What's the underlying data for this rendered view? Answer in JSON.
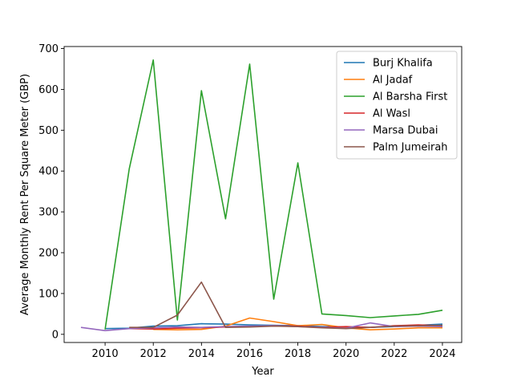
{
  "chart_data": {
    "type": "line",
    "title": "",
    "xlabel": "Year",
    "ylabel": "Average Monthly Rent Per Square Meter (GBP)",
    "xlim": [
      2008.3,
      2024.8
    ],
    "ylim": [
      -20,
      705
    ],
    "xticks": [
      2010,
      2012,
      2014,
      2016,
      2018,
      2020,
      2022,
      2024
    ],
    "yticks": [
      0,
      100,
      200,
      300,
      400,
      500,
      600,
      700
    ],
    "grid": false,
    "legend": "top-right",
    "series": [
      {
        "name": "Burj Khalifa",
        "color": "#1f77b4",
        "x": [
          2010,
          2011,
          2012,
          2013,
          2014,
          2015,
          2016,
          2017,
          2018,
          2019,
          2020,
          2021,
          2022,
          2023,
          2024
        ],
        "y": [
          14,
          15,
          20,
          21,
          26,
          25,
          23,
          22,
          21,
          19,
          18,
          17,
          19,
          22,
          25
        ]
      },
      {
        "name": "Al Jadaf",
        "color": "#ff7f0e",
        "x": [
          2012,
          2013,
          2014,
          2015,
          2016,
          2017,
          2018,
          2019,
          2020,
          2021,
          2022,
          2023,
          2024
        ],
        "y": [
          12,
          11,
          12,
          20,
          40,
          31,
          21,
          24,
          16,
          11,
          13,
          16,
          16
        ]
      },
      {
        "name": "Al Barsha First",
        "color": "#2ca02c",
        "x": [
          2010,
          2011,
          2012,
          2013,
          2014,
          2015,
          2016,
          2017,
          2018,
          2019,
          2020,
          2021,
          2022,
          2023,
          2024
        ],
        "y": [
          12,
          405,
          672,
          35,
          597,
          283,
          662,
          86,
          420,
          50,
          46,
          41,
          45,
          49,
          59
        ]
      },
      {
        "name": "Al Wasl",
        "color": "#d62728",
        "x": [
          2011,
          2012,
          2013,
          2014,
          2015,
          2016,
          2017,
          2018,
          2019,
          2020,
          2021,
          2022,
          2023,
          2024
        ],
        "y": [
          14,
          13,
          15,
          16,
          18,
          19,
          21,
          20,
          17,
          19,
          17,
          21,
          23,
          21
        ]
      },
      {
        "name": "Marsa Dubai",
        "color": "#9467bd",
        "x": [
          2009,
          2010,
          2011,
          2012,
          2013,
          2014,
          2015,
          2016,
          2017,
          2018,
          2019,
          2020,
          2021,
          2022,
          2023,
          2024
        ],
        "y": [
          17,
          9,
          14,
          16,
          18,
          17,
          19,
          20,
          21,
          19,
          17,
          15,
          28,
          19,
          20,
          19
        ]
      },
      {
        "name": "Palm Jumeirah",
        "color": "#8c564b",
        "x": [
          2011,
          2012,
          2013,
          2014,
          2015,
          2016,
          2017,
          2018,
          2019,
          2020,
          2021,
          2022,
          2023,
          2024
        ],
        "y": [
          17,
          17,
          47,
          128,
          17,
          18,
          20,
          19,
          16,
          14,
          17,
          20,
          21,
          22
        ]
      }
    ]
  }
}
